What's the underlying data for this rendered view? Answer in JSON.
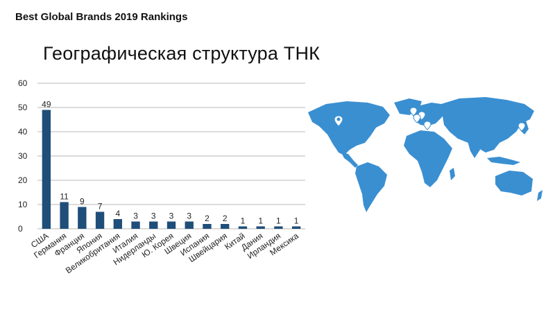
{
  "header": {
    "text": "Best Global Brands 2019 Rankings"
  },
  "slide": {
    "title": "Географическая структура ТНК"
  },
  "colors": {
    "bar": "#1f4e79",
    "map": "#3a8fd1",
    "grid": "#b7b7b7",
    "text": "#222222"
  },
  "map": {
    "pin_icon": "location-pin-icon"
  },
  "chart_data": {
    "type": "bar",
    "categories": [
      "США",
      "Германия",
      "Франция",
      "Япония",
      "Великобритания",
      "Италия",
      "Нидерланды",
      "Ю. Корея",
      "Швеция",
      "Испания",
      "Швейцария",
      "Китай",
      "Дания",
      "Ирландия",
      "Мексика"
    ],
    "values": [
      49,
      11,
      9,
      7,
      4,
      3,
      3,
      3,
      3,
      2,
      2,
      1,
      1,
      1,
      1
    ],
    "ylim": [
      0,
      60
    ],
    "yticks": [
      0,
      10,
      20,
      30,
      40,
      50,
      60
    ],
    "grid": true,
    "data_labels": true
  }
}
